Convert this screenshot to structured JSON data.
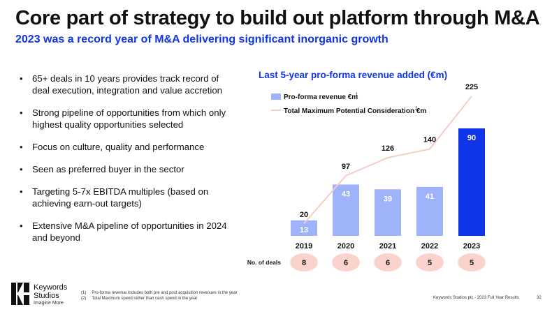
{
  "header": {
    "title": "Core part of strategy to build out platform through M&A",
    "subtitle": "2023 was a record year of M&A delivering significant inorganic growth"
  },
  "bullets": [
    "65+ deals in 10 years provides track record of deal execution, integration and value accretion",
    "Strong pipeline of opportunities from which only highest quality opportunities selected",
    "Focus on culture, quality and performance",
    "Seen as preferred buyer in the sector",
    "Targeting 5-7x EBITDA multiples (based on achieving earn-out targets)",
    "Extensive M&A pipeline of opportunities in 2024 and beyond"
  ],
  "chart_data": {
    "type": "bar",
    "title": "Last 5-year pro-forma revenue added (€m)",
    "categories": [
      "2019",
      "2020",
      "2021",
      "2022",
      "2023"
    ],
    "series": [
      {
        "name": "Pro-forma revenue €m",
        "superscript": "1",
        "kind": "bar",
        "values": [
          13,
          43,
          39,
          41,
          90
        ]
      },
      {
        "name": "Total Maximum Potential Consideration €m",
        "superscript": "2",
        "kind": "line",
        "values": [
          20,
          97,
          126,
          140,
          225
        ]
      }
    ],
    "deals_label": "No. of deals",
    "deals": [
      "8",
      "6",
      "6",
      "5",
      "5"
    ],
    "colors": {
      "bar": "#9fb3fb",
      "bar_highlight": "#1035e8",
      "line": "#f6cdc6",
      "deal_circle": "#fbd3cd",
      "deal_text": "#111111",
      "bar_label": "#ffffff",
      "line_label": "#111111"
    }
  },
  "footnotes": [
    {
      "num": "(1)",
      "text": "Pro-forma revenue includes both pre and post acquisition revenues in the year"
    },
    {
      "num": "(2)",
      "text": "Total Maximum spend rather than cash spend in the year"
    }
  ],
  "footer": {
    "source": "Keywords Studios plc - 2023 Full Year Results",
    "page": "32"
  },
  "logo": {
    "line1": "Keywords",
    "line2": "Studios",
    "tagline": "Imagine More"
  }
}
